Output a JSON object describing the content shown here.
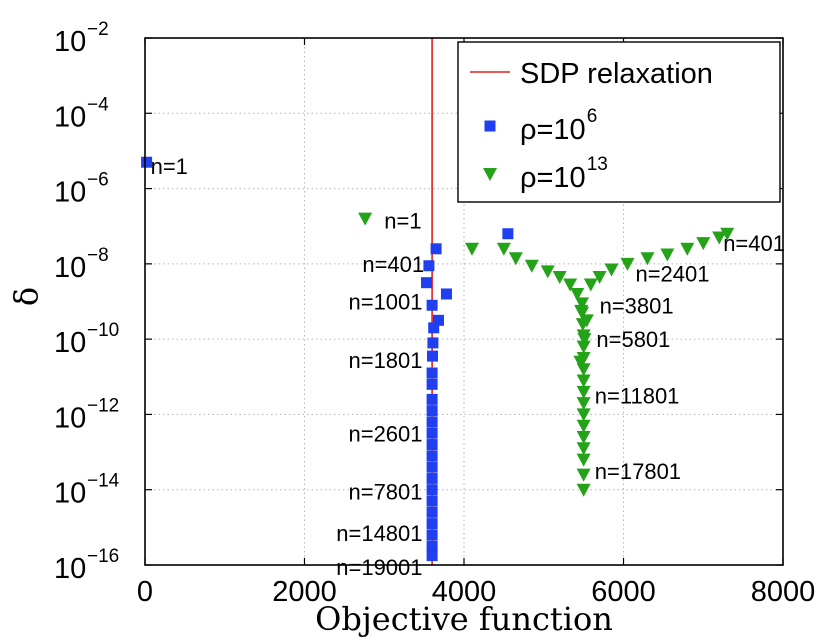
{
  "chart_data": {
    "type": "scatter",
    "xlabel": "Objective function",
    "ylabel": "δ",
    "xlim": [
      0,
      8000
    ],
    "ylim_log10": [
      -16,
      -2
    ],
    "y_scale": "log",
    "grid": true,
    "x_ticks": [
      {
        "value": 0,
        "label": "0"
      },
      {
        "value": 2000,
        "label": "2000"
      },
      {
        "value": 4000,
        "label": "4000"
      },
      {
        "value": 6000,
        "label": "6000"
      },
      {
        "value": 8000,
        "label": "8000"
      }
    ],
    "y_ticks": [
      {
        "exp": -2,
        "base": "10",
        "sup": "−2"
      },
      {
        "exp": -4,
        "base": "10",
        "sup": "−4"
      },
      {
        "exp": -6,
        "base": "10",
        "sup": "−6"
      },
      {
        "exp": -8,
        "base": "10",
        "sup": "−8"
      },
      {
        "exp": -10,
        "base": "10",
        "sup": "−10"
      },
      {
        "exp": -12,
        "base": "10",
        "sup": "−12"
      },
      {
        "exp": -14,
        "base": "10",
        "sup": "−14"
      },
      {
        "exp": -16,
        "base": "10",
        "sup": "−16"
      }
    ],
    "reference_line": {
      "name": "SDP relaxation",
      "x": 3600,
      "color": "#e0201b"
    },
    "series": [
      {
        "name": "ρ=10^6",
        "legend_base": "ρ=10",
        "legend_sup": "6",
        "marker": "square",
        "color": "#1f3ff0",
        "points": [
          [
            20,
            -5.3
          ],
          [
            3560,
            -8.05
          ],
          [
            3530,
            -8.5
          ],
          [
            3650,
            -7.6
          ],
          [
            4550,
            -7.2
          ],
          [
            3600,
            -9.1
          ],
          [
            3680,
            -9.5
          ],
          [
            3780,
            -8.8
          ],
          [
            3620,
            -9.7
          ],
          [
            3610,
            -10.1
          ],
          [
            3605,
            -10.45
          ],
          [
            3600,
            -10.9
          ],
          [
            3600,
            -11.2
          ],
          [
            3600,
            -11.6
          ],
          [
            3600,
            -11.9
          ],
          [
            3600,
            -12.2
          ],
          [
            3600,
            -12.5
          ],
          [
            3600,
            -12.8
          ],
          [
            3600,
            -13.1
          ],
          [
            3600,
            -13.4
          ],
          [
            3600,
            -13.7
          ],
          [
            3600,
            -14.0
          ],
          [
            3600,
            -14.3
          ],
          [
            3600,
            -14.6
          ],
          [
            3600,
            -14.9
          ],
          [
            3600,
            -15.2
          ],
          [
            3600,
            -15.5
          ],
          [
            3600,
            -15.75
          ]
        ]
      },
      {
        "name": "ρ=10^13",
        "legend_base": "ρ=10",
        "legend_sup": "13",
        "marker": "triangle-down",
        "color": "#24a319",
        "points": [
          [
            2760,
            -6.8
          ],
          [
            4100,
            -7.6
          ],
          [
            4500,
            -7.6
          ],
          [
            4650,
            -7.85
          ],
          [
            4850,
            -8.05
          ],
          [
            5050,
            -8.2
          ],
          [
            5200,
            -8.35
          ],
          [
            5330,
            -8.55
          ],
          [
            5420,
            -8.8
          ],
          [
            5480,
            -9.05
          ],
          [
            5590,
            -8.55
          ],
          [
            5700,
            -8.35
          ],
          [
            5850,
            -8.15
          ],
          [
            6050,
            -8.0
          ],
          [
            6300,
            -7.85
          ],
          [
            6550,
            -7.75
          ],
          [
            6800,
            -7.6
          ],
          [
            7000,
            -7.45
          ],
          [
            7200,
            -7.3
          ],
          [
            7300,
            -7.2
          ],
          [
            5480,
            -9.3
          ],
          [
            5490,
            -9.6
          ],
          [
            5500,
            -9.9
          ],
          [
            5500,
            -10.2
          ],
          [
            5500,
            -10.5
          ],
          [
            5500,
            -10.8
          ],
          [
            5500,
            -11.1
          ],
          [
            5500,
            -11.4
          ],
          [
            5500,
            -11.7
          ],
          [
            5500,
            -12.0
          ],
          [
            5500,
            -12.3
          ],
          [
            5500,
            -12.6
          ],
          [
            5500,
            -12.9
          ],
          [
            5500,
            -13.2
          ],
          [
            5500,
            -13.6
          ],
          [
            5500,
            -14.0
          ],
          [
            5470,
            -9.25
          ],
          [
            5540,
            -9.5
          ],
          [
            5510,
            -10.0
          ],
          [
            5460,
            -10.6
          ]
        ]
      }
    ],
    "annotations": [
      {
        "text": "n=1",
        "x": 70,
        "y": -5.4,
        "anchor": "start"
      },
      {
        "text": "n=1",
        "x": 3000,
        "y": -6.85,
        "anchor": "start"
      },
      {
        "text": "n=401",
        "x": 3500,
        "y": -8.0,
        "anchor": "end"
      },
      {
        "text": "n=1001",
        "x": 3480,
        "y": -9.0,
        "anchor": "end"
      },
      {
        "text": "n=1801",
        "x": 3480,
        "y": -10.55,
        "anchor": "end"
      },
      {
        "text": "n=2601",
        "x": 3480,
        "y": -12.5,
        "anchor": "end"
      },
      {
        "text": "n=7801",
        "x": 3480,
        "y": -14.05,
        "anchor": "end"
      },
      {
        "text": "n=14801",
        "x": 3480,
        "y": -15.15,
        "anchor": "end"
      },
      {
        "text": "n=19001",
        "x": 3480,
        "y": -16.05,
        "anchor": "end"
      },
      {
        "text": "n=401",
        "x": 7250,
        "y": -7.45,
        "anchor": "start"
      },
      {
        "text": "n=2401",
        "x": 6150,
        "y": -8.25,
        "anchor": "start"
      },
      {
        "text": "n=3801",
        "x": 5700,
        "y": -9.1,
        "anchor": "start"
      },
      {
        "text": "n=5801",
        "x": 5660,
        "y": -10.0,
        "anchor": "start"
      },
      {
        "text": "n=11801",
        "x": 5640,
        "y": -11.5,
        "anchor": "start"
      },
      {
        "text": "n=17801",
        "x": 5640,
        "y": -13.5,
        "anchor": "start"
      }
    ]
  }
}
